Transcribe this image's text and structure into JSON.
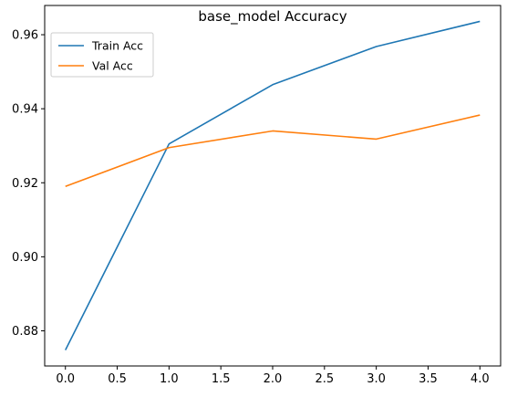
{
  "chart_data": {
    "type": "line",
    "title": "base_model Accuracy",
    "xlabel": "",
    "ylabel": "",
    "x": [
      0,
      1,
      2,
      3,
      4
    ],
    "xlim": [
      -0.2,
      4.2
    ],
    "ylim": [
      0.8705,
      0.9679
    ],
    "xticks": [
      "0.0",
      "0.5",
      "1.0",
      "1.5",
      "2.0",
      "2.5",
      "3.0",
      "3.5",
      "4.0"
    ],
    "yticks": [
      "0.88",
      "0.90",
      "0.92",
      "0.94",
      "0.96"
    ],
    "grid": false,
    "legend": "top-left",
    "series": [
      {
        "name": "Train Acc",
        "color": "#1f77b4",
        "values": [
          0.8748,
          0.9305,
          0.9465,
          0.9568,
          0.9636
        ]
      },
      {
        "name": "Val Acc",
        "color": "#ff7f0e",
        "values": [
          0.919,
          0.9295,
          0.934,
          0.9318,
          0.9383
        ]
      }
    ]
  }
}
